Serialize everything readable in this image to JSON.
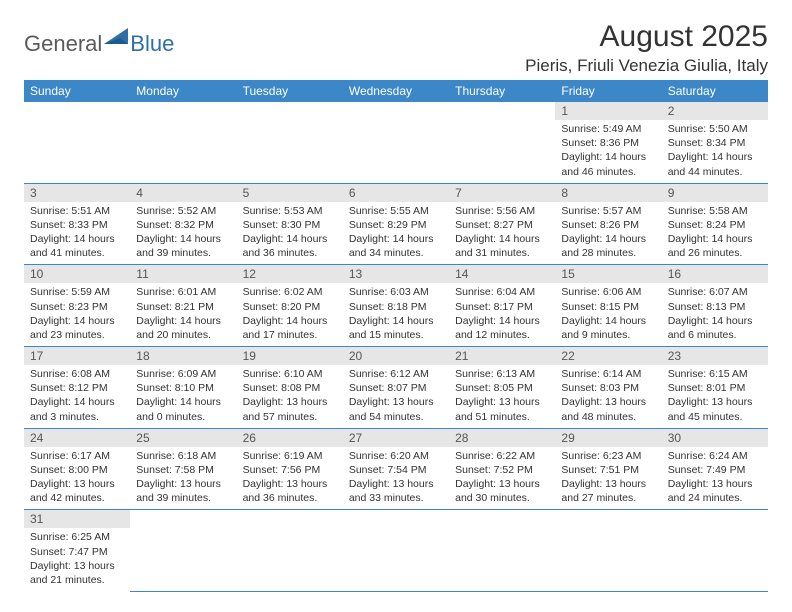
{
  "logo": {
    "text1": "General",
    "text2": "Blue"
  },
  "title": "August 2025",
  "location": "Pieris, Friuli Venezia Giulia, Italy",
  "colors": {
    "header_bg": "#3b87c8",
    "header_text": "#ffffff",
    "daynum_bg": "#e6e6e6",
    "row_border": "#3b87c8",
    "logo_gray": "#5a5a5a",
    "logo_blue": "#2f6fa8"
  },
  "day_labels": [
    "Sunday",
    "Monday",
    "Tuesday",
    "Wednesday",
    "Thursday",
    "Friday",
    "Saturday"
  ],
  "weeks": [
    [
      null,
      null,
      null,
      null,
      null,
      {
        "n": "1",
        "sr": "5:49 AM",
        "ss": "8:36 PM",
        "dl": "14 hours and 46 minutes."
      },
      {
        "n": "2",
        "sr": "5:50 AM",
        "ss": "8:34 PM",
        "dl": "14 hours and 44 minutes."
      }
    ],
    [
      {
        "n": "3",
        "sr": "5:51 AM",
        "ss": "8:33 PM",
        "dl": "14 hours and 41 minutes."
      },
      {
        "n": "4",
        "sr": "5:52 AM",
        "ss": "8:32 PM",
        "dl": "14 hours and 39 minutes."
      },
      {
        "n": "5",
        "sr": "5:53 AM",
        "ss": "8:30 PM",
        "dl": "14 hours and 36 minutes."
      },
      {
        "n": "6",
        "sr": "5:55 AM",
        "ss": "8:29 PM",
        "dl": "14 hours and 34 minutes."
      },
      {
        "n": "7",
        "sr": "5:56 AM",
        "ss": "8:27 PM",
        "dl": "14 hours and 31 minutes."
      },
      {
        "n": "8",
        "sr": "5:57 AM",
        "ss": "8:26 PM",
        "dl": "14 hours and 28 minutes."
      },
      {
        "n": "9",
        "sr": "5:58 AM",
        "ss": "8:24 PM",
        "dl": "14 hours and 26 minutes."
      }
    ],
    [
      {
        "n": "10",
        "sr": "5:59 AM",
        "ss": "8:23 PM",
        "dl": "14 hours and 23 minutes."
      },
      {
        "n": "11",
        "sr": "6:01 AM",
        "ss": "8:21 PM",
        "dl": "14 hours and 20 minutes."
      },
      {
        "n": "12",
        "sr": "6:02 AM",
        "ss": "8:20 PM",
        "dl": "14 hours and 17 minutes."
      },
      {
        "n": "13",
        "sr": "6:03 AM",
        "ss": "8:18 PM",
        "dl": "14 hours and 15 minutes."
      },
      {
        "n": "14",
        "sr": "6:04 AM",
        "ss": "8:17 PM",
        "dl": "14 hours and 12 minutes."
      },
      {
        "n": "15",
        "sr": "6:06 AM",
        "ss": "8:15 PM",
        "dl": "14 hours and 9 minutes."
      },
      {
        "n": "16",
        "sr": "6:07 AM",
        "ss": "8:13 PM",
        "dl": "14 hours and 6 minutes."
      }
    ],
    [
      {
        "n": "17",
        "sr": "6:08 AM",
        "ss": "8:12 PM",
        "dl": "14 hours and 3 minutes."
      },
      {
        "n": "18",
        "sr": "6:09 AM",
        "ss": "8:10 PM",
        "dl": "14 hours and 0 minutes."
      },
      {
        "n": "19",
        "sr": "6:10 AM",
        "ss": "8:08 PM",
        "dl": "13 hours and 57 minutes."
      },
      {
        "n": "20",
        "sr": "6:12 AM",
        "ss": "8:07 PM",
        "dl": "13 hours and 54 minutes."
      },
      {
        "n": "21",
        "sr": "6:13 AM",
        "ss": "8:05 PM",
        "dl": "13 hours and 51 minutes."
      },
      {
        "n": "22",
        "sr": "6:14 AM",
        "ss": "8:03 PM",
        "dl": "13 hours and 48 minutes."
      },
      {
        "n": "23",
        "sr": "6:15 AM",
        "ss": "8:01 PM",
        "dl": "13 hours and 45 minutes."
      }
    ],
    [
      {
        "n": "24",
        "sr": "6:17 AM",
        "ss": "8:00 PM",
        "dl": "13 hours and 42 minutes."
      },
      {
        "n": "25",
        "sr": "6:18 AM",
        "ss": "7:58 PM",
        "dl": "13 hours and 39 minutes."
      },
      {
        "n": "26",
        "sr": "6:19 AM",
        "ss": "7:56 PM",
        "dl": "13 hours and 36 minutes."
      },
      {
        "n": "27",
        "sr": "6:20 AM",
        "ss": "7:54 PM",
        "dl": "13 hours and 33 minutes."
      },
      {
        "n": "28",
        "sr": "6:22 AM",
        "ss": "7:52 PM",
        "dl": "13 hours and 30 minutes."
      },
      {
        "n": "29",
        "sr": "6:23 AM",
        "ss": "7:51 PM",
        "dl": "13 hours and 27 minutes."
      },
      {
        "n": "30",
        "sr": "6:24 AM",
        "ss": "7:49 PM",
        "dl": "13 hours and 24 minutes."
      }
    ],
    [
      {
        "n": "31",
        "sr": "6:25 AM",
        "ss": "7:47 PM",
        "dl": "13 hours and 21 minutes."
      },
      null,
      null,
      null,
      null,
      null,
      null
    ]
  ],
  "labels": {
    "sunrise": "Sunrise:",
    "sunset": "Sunset:",
    "daylight": "Daylight:"
  }
}
